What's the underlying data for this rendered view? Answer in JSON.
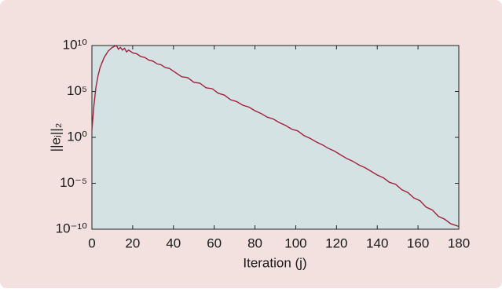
{
  "chart_data": {
    "type": "line",
    "x_label": "Iteration (j)",
    "y_label": "||eⱼ||₂",
    "log_y": true,
    "xlim": [
      0,
      180
    ],
    "xticks": [
      0,
      20,
      40,
      60,
      80,
      100,
      120,
      140,
      160,
      180
    ],
    "ylim": [
      1e-10,
      10000000000.0
    ],
    "yticks": [
      {
        "value": 1e-10,
        "label": "10⁻¹⁰"
      },
      {
        "value": 1e-05,
        "label": "10⁻⁵"
      },
      {
        "value": 1,
        "label": "10⁰"
      },
      {
        "value": 100000.0,
        "label": "10⁵"
      },
      {
        "value": 10000000000.0,
        "label": "10¹⁰"
      }
    ],
    "plot_background": "#d5e2e3",
    "series": [
      {
        "color": "#a0203c",
        "x": [
          0,
          1,
          2,
          3,
          4,
          6,
          8,
          10,
          12,
          13,
          14,
          15,
          16,
          17,
          18,
          20,
          22,
          24,
          26,
          28,
          30,
          32,
          34,
          36,
          38,
          40,
          44,
          47,
          50,
          53,
          56,
          59,
          62,
          65,
          68,
          71,
          74,
          77,
          80,
          83,
          86,
          89,
          92,
          95,
          98,
          101,
          104,
          107,
          110,
          113,
          116,
          119,
          122,
          125,
          128,
          131,
          134,
          137,
          140,
          143,
          146,
          149,
          152,
          155,
          158,
          161,
          164,
          167,
          170,
          173,
          176,
          180
        ],
        "values": [
          6.3,
          3200,
          320000.0,
          5000000.0,
          40000000.0,
          500000000.0,
          2500000000.0,
          6300000000.0,
          10000000000.0,
          4000000000.0,
          6300000000.0,
          3200000000.0,
          5000000000.0,
          2000000000.0,
          3200000000.0,
          1600000000.0,
          1260000000.0,
          630000000.0,
          500000000.0,
          250000000.0,
          200000000.0,
          100000000.0,
          79000000.0,
          40000000.0,
          32000000.0,
          16000000.0,
          4000000.0,
          3200000.0,
          1000000.0,
          790000.0,
          250000.0,
          200000.0,
          63000.0,
          40000.0,
          12600.0,
          7900,
          3200,
          2000,
          790,
          400,
          160,
          100,
          40,
          20,
          7.9,
          5,
          1.6,
          0.79,
          0.32,
          0.16,
          0.063,
          0.032,
          0.0126,
          0.005,
          0.0025,
          0.001,
          0.0005,
          0.0002,
          7.9e-05,
          4e-05,
          1.26e-05,
          7.9e-06,
          2e-06,
          1e-06,
          2.5e-07,
          1.26e-07,
          2.5e-08,
          1.26e-08,
          2.5e-09,
          1.26e-09,
          4e-10,
          2e-10
        ]
      }
    ]
  }
}
